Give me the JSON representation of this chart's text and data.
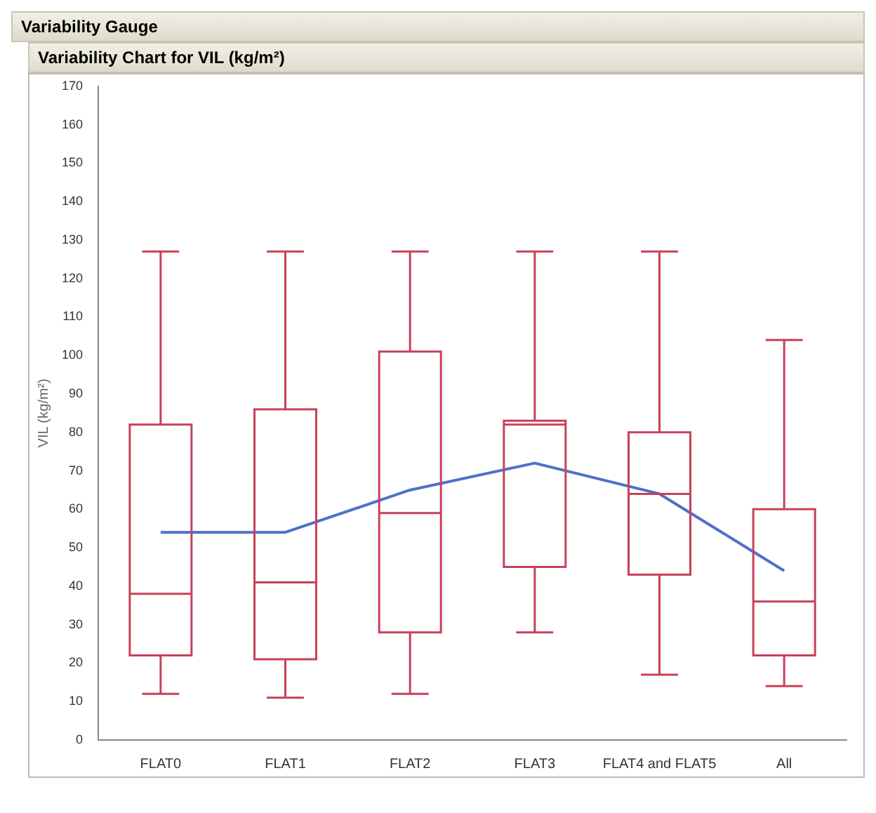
{
  "chart_data": {
    "type": "box",
    "title": "Variability Gauge",
    "subtitle": "Variability Chart for VIL (kg/m²)",
    "ylabel": "VIL (kg/m²)",
    "categories": [
      "FLAT0",
      "FLAT1",
      "FLAT2",
      "FLAT3",
      "FLAT4 and FLAT5",
      "All"
    ],
    "color": "#c8405a",
    "boxes": [
      {
        "low": 12,
        "q1": 22,
        "median": 38,
        "q3": 82,
        "high": 127
      },
      {
        "low": 11,
        "q1": 21,
        "median": 41,
        "q3": 86,
        "high": 127
      },
      {
        "low": 12,
        "q1": 28,
        "median": 59,
        "q3": 101,
        "high": 127
      },
      {
        "low": 28,
        "q1": 45,
        "median": 82,
        "q3": 83,
        "high": 127
      },
      {
        "low": 17,
        "q1": 43,
        "median": 64,
        "q3": 80,
        "high": 127
      },
      {
        "low": 14,
        "q1": 22,
        "median": 36,
        "q3": 60,
        "high": 104
      }
    ],
    "series": [
      {
        "type": "line",
        "color": "#5070c8",
        "values": [
          54,
          54,
          65,
          72,
          64,
          44
        ]
      }
    ],
    "marker": "none",
    "grid": false,
    "legend": false,
    "ylim": [
      0,
      170
    ],
    "yticks": [
      0,
      10,
      20,
      30,
      40,
      50,
      60,
      70,
      80,
      90,
      100,
      110,
      120,
      130,
      140,
      150,
      160,
      170
    ]
  }
}
